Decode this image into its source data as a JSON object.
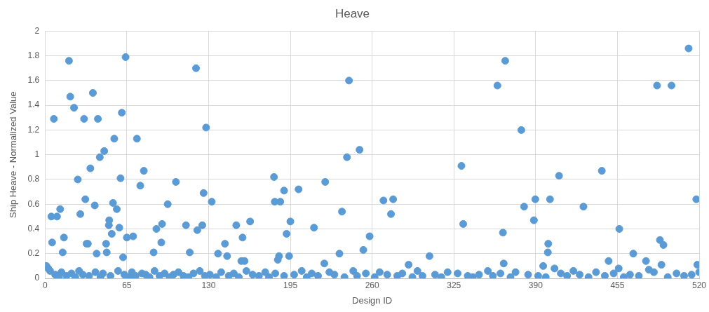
{
  "chart_data": {
    "type": "scatter",
    "title": "Heave",
    "xlabel": "Design ID",
    "ylabel": "Ship Heave - Normalized Value",
    "xlim": [
      0,
      520
    ],
    "xticks": [
      0,
      65,
      130,
      195,
      260,
      325,
      390,
      455,
      520
    ],
    "ylim": [
      0,
      2
    ],
    "yticks": [
      0,
      0.2,
      0.4,
      0.6,
      0.8,
      1,
      1.2,
      1.4,
      1.6,
      1.8,
      2
    ],
    "grid": true,
    "marker": "circle",
    "legend": false,
    "series": [
      {
        "color": "#5b9bd5",
        "x": [
          1,
          2.5,
          5.6,
          5,
          7,
          9.5,
          12,
          14,
          15,
          19,
          20,
          23,
          26,
          28,
          31,
          32,
          33,
          34,
          36,
          38,
          39.5,
          41,
          42,
          43.5,
          47,
          48.5,
          49,
          50.7,
          51,
          53,
          54,
          55,
          57,
          59,
          60,
          61,
          62,
          64,
          65,
          70,
          73,
          75.7,
          78.5,
          86.3,
          88.5,
          92.4,
          93,
          97.5,
          104,
          112,
          115,
          120,
          121,
          125,
          126,
          128,
          132.5,
          137.5,
          143,
          144.7,
          152,
          156,
          157,
          158.6,
          163,
          182,
          182.6,
          185,
          186,
          187,
          190,
          192,
          194,
          195,
          201.5,
          213.8,
          222,
          222.7,
          234,
          236,
          240,
          241.6,
          250,
          253,
          258,
          269,
          275,
          276.7,
          289,
          305.6,
          331,
          332.4,
          359.6,
          364,
          364.6,
          365.8,
          378.6,
          380.8,
          388.6,
          389.7,
          396,
          399.7,
          400,
          401.4,
          405,
          408.6,
          428,
          442.6,
          448,
          456,
          456.5,
          467.6,
          477.7,
          480,
          486.5,
          488.8,
          490,
          491.6,
          498,
          511.6,
          517.7,
          518.5,
          4,
          8,
          11,
          13,
          17,
          21,
          24,
          27,
          30,
          35,
          40,
          44,
          46,
          52,
          58,
          63,
          67,
          69,
          72,
          77,
          80,
          83,
          87,
          91,
          95,
          99,
          102,
          106,
          110,
          114,
          118,
          123,
          127,
          131,
          136,
          140,
          146,
          150,
          154,
          160,
          165,
          170,
          175,
          178,
          183,
          190,
          198,
          204,
          208,
          212,
          217,
          226,
          230,
          238,
          245,
          248,
          255,
          262,
          266,
          272,
          280,
          284,
          292,
          296,
          300,
          310,
          315,
          320,
          328,
          336,
          340,
          345,
          352,
          356,
          362,
          370,
          374,
          384,
          392,
          398,
          410,
          415,
          420,
          425,
          432,
          438,
          445,
          452,
          460,
          465,
          472,
          484,
          495,
          502,
          508,
          514,
          520
        ],
        "values": [
          0.1,
          0.08,
          0.29,
          0.5,
          1.29,
          0.5,
          0.56,
          0.21,
          0.33,
          1.76,
          1.47,
          1.38,
          0.8,
          0.52,
          1.29,
          0.64,
          0.28,
          0.28,
          0.89,
          1.5,
          0.59,
          0.2,
          1.29,
          0.98,
          1.03,
          0.28,
          0.21,
          0.43,
          0.47,
          0.36,
          0.61,
          1.13,
          0.56,
          0.41,
          0.81,
          1.34,
          0.17,
          1.79,
          0.33,
          0.34,
          1.13,
          0.75,
          0.87,
          0.21,
          0.4,
          0.29,
          0.44,
          0.6,
          0.78,
          0.43,
          0.21,
          1.7,
          0.39,
          0.43,
          0.69,
          1.22,
          0.62,
          0.2,
          0.28,
          0.18,
          0.43,
          0.14,
          0.33,
          0.14,
          0.46,
          0.82,
          0.62,
          0.15,
          0.18,
          0.62,
          0.71,
          0.36,
          0.18,
          0.46,
          0.72,
          0.41,
          0.12,
          0.78,
          0.2,
          0.54,
          0.98,
          1.6,
          1.04,
          0.23,
          0.34,
          0.63,
          0.52,
          0.64,
          0.11,
          0.18,
          0.91,
          0.44,
          1.56,
          0.37,
          0.12,
          1.76,
          1.2,
          0.58,
          0.47,
          0.64,
          0.1,
          0.21,
          0.28,
          0.64,
          0.08,
          0.83,
          0.58,
          0.87,
          0.14,
          0.08,
          0.4,
          0.2,
          0.14,
          0.07,
          1.56,
          0.31,
          0.11,
          0.27,
          1.56,
          1.86,
          0.64,
          0.11,
          0.06,
          0.03,
          0.01,
          0.05,
          0.02,
          0.04,
          0.01,
          0.06,
          0.03,
          0.02,
          0.05,
          0.01,
          0.04,
          0.02,
          0.06,
          0.03,
          0.01,
          0.05,
          0.02,
          0.04,
          0.03,
          0.01,
          0.06,
          0.02,
          0.04,
          0.01,
          0.03,
          0.05,
          0.02,
          0.01,
          0.04,
          0.06,
          0.02,
          0.03,
          0.01,
          0.05,
          0.02,
          0.04,
          0.01,
          0.06,
          0.03,
          0.02,
          0.05,
          0.01,
          0.04,
          0.02,
          0.03,
          0.06,
          0.01,
          0.04,
          0.02,
          0.05,
          0.03,
          0.01,
          0.06,
          0.02,
          0.04,
          0.01,
          0.05,
          0.03,
          0.02,
          0.04,
          0.01,
          0.06,
          0.02,
          0.03,
          0.01,
          0.05,
          0.04,
          0.02,
          0.01,
          0.03,
          0.06,
          0.02,
          0.04,
          0.01,
          0.05,
          0.03,
          0.02,
          0.01,
          0.04,
          0.02,
          0.06,
          0.03,
          0.01,
          0.05,
          0.02,
          0.04,
          0.01,
          0.03,
          0.02,
          0.05,
          0.01,
          0.04,
          0.02,
          0.03,
          0.05
        ]
      }
    ]
  }
}
